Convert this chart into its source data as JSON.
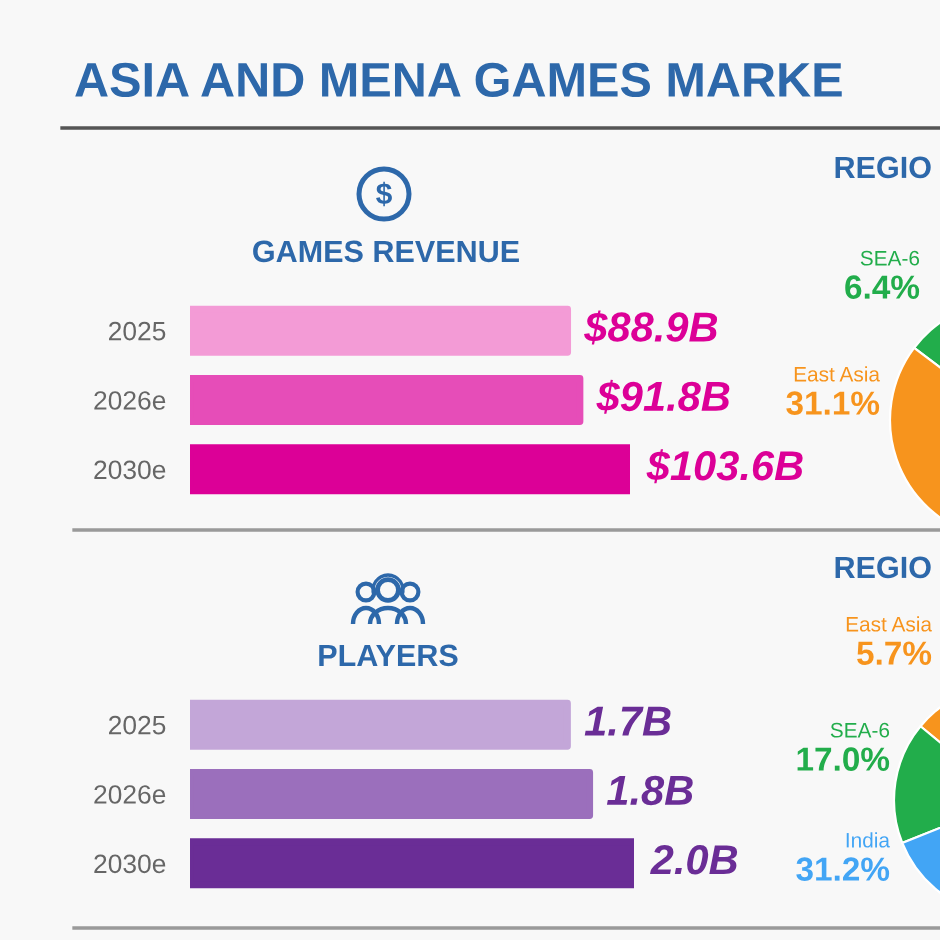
{
  "chart_data": [
    {
      "type": "other",
      "title": "ASIA AND MENA GAMES MARKE"
    },
    {
      "type": "bar",
      "orientation": "horizontal",
      "title": "GAMES REVENUE",
      "categories": [
        "2025",
        "2026e",
        "2030e"
      ],
      "values": [
        88.9,
        91.8,
        103.6
      ],
      "colors": [
        "#f39bd6",
        "#e64db8",
        "#dc0097"
      ],
      "value_labels": [
        "$88.9B",
        "$91.8B",
        "$103.6B"
      ],
      "tick_labels": "y"
    },
    {
      "type": "pie",
      "title": "REGIO",
      "categories": [
        "SEA-6",
        "East Asia"
      ],
      "values": [
        6.4,
        31.1
      ],
      "colors": [
        "#22ad4b",
        "#f7941d"
      ],
      "value_labels": [
        "6.4%",
        "31.1%"
      ]
    },
    {
      "type": "bar",
      "orientation": "horizontal",
      "title": "PLAYERS",
      "categories": [
        "2025",
        "2026e",
        "2030e"
      ],
      "values": [
        1.7,
        1.8,
        2.0
      ],
      "colors": [
        "#c3a6d8",
        "#9b6fbc",
        "#6a2d96"
      ],
      "value_labels": [
        "1.7B",
        "1.8B",
        "2.0B"
      ],
      "tick_labels": "y"
    },
    {
      "type": "pie",
      "title": "REGIO",
      "categories": [
        "East Asia",
        "SEA-6",
        "India"
      ],
      "values": [
        5.7,
        17.0,
        31.2
      ],
      "colors": [
        "#f7941d",
        "#22ad4b",
        "#42a5f5"
      ],
      "value_labels": [
        "5.7%",
        "17.0%",
        "31.2%"
      ]
    }
  ]
}
